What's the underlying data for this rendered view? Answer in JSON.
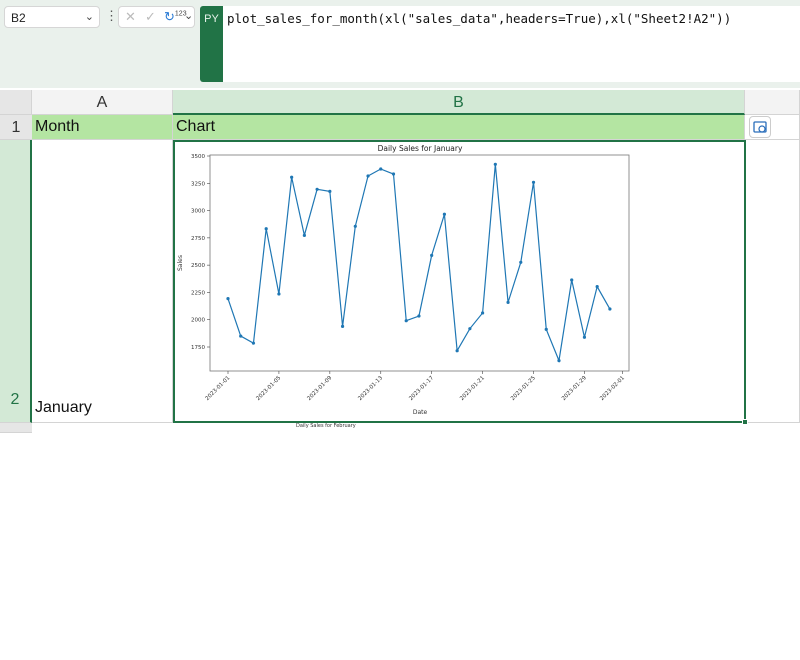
{
  "name_box": {
    "value": "B2"
  },
  "formula_bar": {
    "mode_badge": "PY",
    "formula": "plot_sales_for_month(xl(\"sales_data\",headers=True),xl(\"Sheet2!A2\"))",
    "output_type_label": "123"
  },
  "columns": [
    "A",
    "B"
  ],
  "rows": [
    "1",
    "2"
  ],
  "cells": {
    "A1": "Month",
    "B1": "Chart",
    "A2": "January"
  },
  "next_chart_title": "Daily Sales for February",
  "colors": {
    "excel_green": "#217346",
    "header_fill": "#b4e5a2",
    "line": "#1f77b4"
  },
  "chart_data": {
    "type": "line",
    "title": "Daily Sales for January",
    "xlabel": "Date",
    "ylabel": "Sales",
    "x": [
      "2023-01-01",
      "2023-01-02",
      "2023-01-03",
      "2023-01-04",
      "2023-01-05",
      "2023-01-06",
      "2023-01-07",
      "2023-01-08",
      "2023-01-09",
      "2023-01-10",
      "2023-01-11",
      "2023-01-12",
      "2023-01-13",
      "2023-01-14",
      "2023-01-15",
      "2023-01-16",
      "2023-01-17",
      "2023-01-18",
      "2023-01-19",
      "2023-01-20",
      "2023-01-21",
      "2023-01-22",
      "2023-01-23",
      "2023-01-24",
      "2023-01-25",
      "2023-01-26",
      "2023-01-27",
      "2023-01-28",
      "2023-01-29",
      "2023-01-30",
      "2023-01-31"
    ],
    "values": [
      2193,
      1850,
      1785,
      2834,
      2236,
      3305,
      2773,
      3195,
      3176,
      1939,
      2856,
      3317,
      3381,
      3335,
      1991,
      2034,
      2590,
      2966,
      1716,
      1918,
      2062,
      3424,
      2159,
      2526,
      3259,
      1912,
      1625,
      2364,
      1839,
      2303,
      2098
    ],
    "xticks": [
      "2023-01-01",
      "2023-01-05",
      "2023-01-09",
      "2023-01-13",
      "2023-01-17",
      "2023-01-21",
      "2023-01-25",
      "2023-01-29",
      "2023-02-01"
    ],
    "yticks": [
      1750,
      2000,
      2250,
      2500,
      2750,
      3000,
      3250,
      3500
    ],
    "ylim": [
      1560,
      3510
    ],
    "marker": "circle",
    "grid": false
  }
}
